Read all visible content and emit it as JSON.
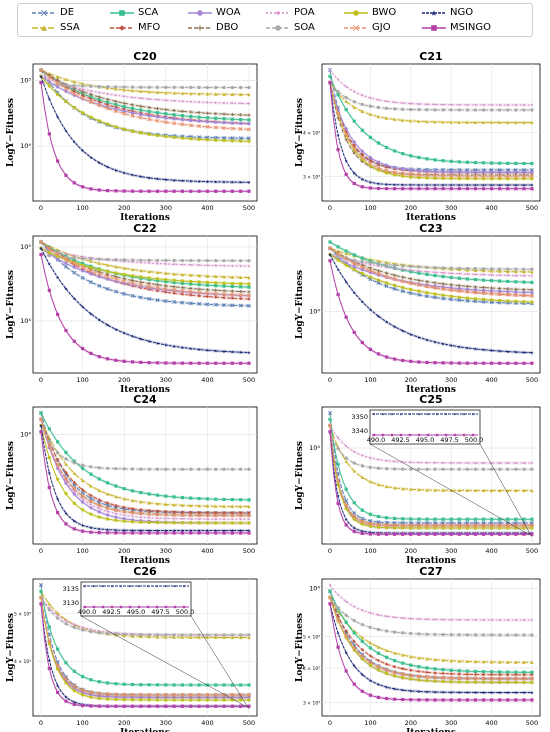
{
  "legend": {
    "items": [
      {
        "name": "DE",
        "color": "#5b7fb5",
        "marker": "x",
        "dash": "4,2"
      },
      {
        "name": "SSA",
        "color": "#c8b42c",
        "marker": "tri",
        "dash": "6,2"
      },
      {
        "name": "SCA",
        "color": "#3bbf8f",
        "marker": "sq",
        "dash": ""
      },
      {
        "name": "MFO",
        "color": "#c0503c",
        "marker": "diamond",
        "dash": "4,2"
      },
      {
        "name": "WOA",
        "color": "#a285d6",
        "marker": "circ",
        "dash": ""
      },
      {
        "name": "DBO",
        "color": "#8b7150",
        "marker": "plus",
        "dash": "4,2"
      },
      {
        "name": "POA",
        "color": "#d48ec8",
        "marker": "dot",
        "dash": "2,2"
      },
      {
        "name": "SOA",
        "color": "#a8a8a8",
        "marker": "circ",
        "dash": "4,2"
      },
      {
        "name": "BWO",
        "color": "#bfbf1e",
        "marker": "circ",
        "dash": ""
      },
      {
        "name": "GJO",
        "color": "#e89470",
        "marker": "x",
        "dash": "4,2"
      },
      {
        "name": "NGO",
        "color": "#1c2a78",
        "marker": "star",
        "dash": "3,1"
      },
      {
        "name": "MSINGO",
        "color": "#b33fa8",
        "marker": "sq",
        "dash": ""
      }
    ]
  },
  "chart_data": [
    {
      "type": "line",
      "title": "C20",
      "xlabel": "Iterations",
      "ylabel": "LogY−Fitness",
      "x_ticks": [
        0,
        100,
        200,
        300,
        400,
        500
      ],
      "y_scale": "log",
      "y_ticks": [
        "10⁵",
        "10⁴"
      ],
      "series": [
        {
          "name": "DE",
          "start": 1.0,
          "end": 0.45,
          "rate": 5
        },
        {
          "name": "SSA",
          "start": 1.0,
          "end": 0.8,
          "rate": 4
        },
        {
          "name": "SCA",
          "start": 1.0,
          "end": 0.58,
          "rate": 3
        },
        {
          "name": "MFO",
          "start": 1.0,
          "end": 0.55,
          "rate": 3
        },
        {
          "name": "WOA",
          "start": 0.95,
          "end": 0.55,
          "rate": 3
        },
        {
          "name": "DBO",
          "start": 1.0,
          "end": 0.62,
          "rate": 3
        },
        {
          "name": "POA",
          "start": 0.95,
          "end": 0.72,
          "rate": 3
        },
        {
          "name": "SOA",
          "start": 0.9,
          "end": 0.86,
          "rate": 6
        },
        {
          "name": "BWO",
          "start": 0.95,
          "end": 0.42,
          "rate": 4
        },
        {
          "name": "GJO",
          "start": 1.0,
          "end": 0.5,
          "rate": 3
        },
        {
          "name": "NGO",
          "start": 0.95,
          "end": 0.1,
          "rate": 6
        },
        {
          "name": "MSINGO",
          "start": 0.9,
          "end": 0.03,
          "rate": 16
        }
      ]
    },
    {
      "type": "line",
      "title": "C21",
      "xlabel": "Iterations",
      "ylabel": "LogY−Fitness",
      "x_ticks": [
        0,
        100,
        200,
        300,
        400,
        500
      ],
      "y_scale": "log",
      "y_ticks": [
        "4 × 10³",
        "3 × 10³"
      ],
      "series": [
        {
          "name": "DE",
          "start": 1.0,
          "end": 0.2,
          "rate": 12
        },
        {
          "name": "SSA",
          "start": 0.9,
          "end": 0.58,
          "rate": 8
        },
        {
          "name": "SCA",
          "start": 0.95,
          "end": 0.25,
          "rate": 6
        },
        {
          "name": "MFO",
          "start": 0.9,
          "end": 0.18,
          "rate": 10
        },
        {
          "name": "WOA",
          "start": 0.9,
          "end": 0.18,
          "rate": 9
        },
        {
          "name": "DBO",
          "start": 0.9,
          "end": 0.16,
          "rate": 12
        },
        {
          "name": "POA",
          "start": 1.0,
          "end": 0.72,
          "rate": 8
        },
        {
          "name": "SOA",
          "start": 0.9,
          "end": 0.68,
          "rate": 10
        },
        {
          "name": "BWO",
          "start": 0.9,
          "end": 0.13,
          "rate": 10
        },
        {
          "name": "GJO",
          "start": 0.9,
          "end": 0.15,
          "rate": 10
        },
        {
          "name": "NGO",
          "start": 0.9,
          "end": 0.08,
          "rate": 18
        },
        {
          "name": "MSINGO",
          "start": 0.9,
          "end": 0.05,
          "rate": 25
        }
      ]
    },
    {
      "type": "line",
      "title": "C22",
      "xlabel": "Iterations",
      "ylabel": "LogY−Fitness",
      "x_ticks": [
        0,
        100,
        200,
        300,
        400,
        500
      ],
      "y_scale": "log",
      "y_ticks": [
        "10⁵",
        "10⁴"
      ],
      "series": [
        {
          "name": "DE",
          "start": 1.0,
          "end": 0.48,
          "rate": 4
        },
        {
          "name": "SSA",
          "start": 1.0,
          "end": 0.7,
          "rate": 3
        },
        {
          "name": "SCA",
          "start": 1.0,
          "end": 0.62,
          "rate": 3
        },
        {
          "name": "MFO",
          "start": 1.0,
          "end": 0.52,
          "rate": 3
        },
        {
          "name": "WOA",
          "start": 0.95,
          "end": 0.55,
          "rate": 3
        },
        {
          "name": "DBO",
          "start": 1.0,
          "end": 0.58,
          "rate": 3
        },
        {
          "name": "POA",
          "start": 0.95,
          "end": 0.8,
          "rate": 3
        },
        {
          "name": "SOA",
          "start": 0.9,
          "end": 0.85,
          "rate": 5
        },
        {
          "name": "BWO",
          "start": 0.95,
          "end": 0.65,
          "rate": 3
        },
        {
          "name": "GJO",
          "start": 1.0,
          "end": 0.55,
          "rate": 3
        },
        {
          "name": "NGO",
          "start": 0.95,
          "end": 0.1,
          "rate": 4
        },
        {
          "name": "MSINGO",
          "start": 0.9,
          "end": 0.03,
          "rate": 10
        }
      ]
    },
    {
      "type": "line",
      "title": "C23",
      "xlabel": "Iterations",
      "ylabel": "LogY−Fitness",
      "x_ticks": [
        0,
        100,
        200,
        300,
        400,
        500
      ],
      "y_scale": "log",
      "y_ticks": [
        "10⁴"
      ],
      "series": [
        {
          "name": "DE",
          "start": 0.95,
          "end": 0.5,
          "rate": 4
        },
        {
          "name": "SSA",
          "start": 0.95,
          "end": 0.75,
          "rate": 3
        },
        {
          "name": "SCA",
          "start": 1.0,
          "end": 0.66,
          "rate": 3
        },
        {
          "name": "MFO",
          "start": 0.95,
          "end": 0.55,
          "rate": 3
        },
        {
          "name": "WOA",
          "start": 0.9,
          "end": 0.58,
          "rate": 3
        },
        {
          "name": "DBO",
          "start": 0.95,
          "end": 0.6,
          "rate": 3
        },
        {
          "name": "POA",
          "start": 0.9,
          "end": 0.72,
          "rate": 3
        },
        {
          "name": "SOA",
          "start": 0.9,
          "end": 0.78,
          "rate": 4
        },
        {
          "name": "BWO",
          "start": 0.9,
          "end": 0.5,
          "rate": 3
        },
        {
          "name": "GJO",
          "start": 0.95,
          "end": 0.55,
          "rate": 3
        },
        {
          "name": "NGO",
          "start": 0.9,
          "end": 0.1,
          "rate": 4
        },
        {
          "name": "MSINGO",
          "start": 0.85,
          "end": 0.03,
          "rate": 10
        }
      ]
    },
    {
      "type": "line",
      "title": "C24",
      "xlabel": "Iterations",
      "ylabel": "LogY−Fitness",
      "x_ticks": [
        0,
        100,
        200,
        300,
        400,
        500
      ],
      "y_scale": "log",
      "y_ticks": [
        "10⁴"
      ],
      "series": [
        {
          "name": "DE",
          "start": 1.0,
          "end": 0.2,
          "rate": 8
        },
        {
          "name": "SSA",
          "start": 0.95,
          "end": 0.25,
          "rate": 6
        },
        {
          "name": "SCA",
          "start": 1.0,
          "end": 0.3,
          "rate": 5
        },
        {
          "name": "MFO",
          "start": 0.95,
          "end": 0.2,
          "rate": 7
        },
        {
          "name": "WOA",
          "start": 0.95,
          "end": 0.12,
          "rate": 8
        },
        {
          "name": "DBO",
          "start": 0.95,
          "end": 0.18,
          "rate": 8
        },
        {
          "name": "POA",
          "start": 0.95,
          "end": 0.15,
          "rate": 8
        },
        {
          "name": "SOA",
          "start": 0.9,
          "end": 0.55,
          "rate": 12
        },
        {
          "name": "BWO",
          "start": 0.9,
          "end": 0.12,
          "rate": 10
        },
        {
          "name": "GJO",
          "start": 0.95,
          "end": 0.18,
          "rate": 8
        },
        {
          "name": "NGO",
          "start": 0.9,
          "end": 0.06,
          "rate": 15
        },
        {
          "name": "MSINGO",
          "start": 0.85,
          "end": 0.04,
          "rate": 20
        }
      ]
    },
    {
      "type": "line",
      "title": "C25",
      "xlabel": "Iterations",
      "ylabel": "LogY−Fitness",
      "x_ticks": [
        0,
        100,
        200,
        300,
        400,
        500
      ],
      "y_scale": "log",
      "y_ticks": [
        "10⁴"
      ],
      "inset": {
        "x_ticks": [
          "490.0",
          "492.5",
          "495.0",
          "497.5",
          "500.0"
        ],
        "y_ticks": [
          "3350",
          "3340"
        ]
      },
      "series": [
        {
          "name": "DE",
          "start": 1.0,
          "end": 0.12,
          "rate": 20
        },
        {
          "name": "SSA",
          "start": 0.9,
          "end": 0.38,
          "rate": 10
        },
        {
          "name": "SCA",
          "start": 0.95,
          "end": 0.15,
          "rate": 15
        },
        {
          "name": "MFO",
          "start": 0.9,
          "end": 0.1,
          "rate": 20
        },
        {
          "name": "WOA",
          "start": 0.9,
          "end": 0.08,
          "rate": 20
        },
        {
          "name": "DBO",
          "start": 0.9,
          "end": 0.1,
          "rate": 20
        },
        {
          "name": "POA",
          "start": 0.9,
          "end": 0.6,
          "rate": 10
        },
        {
          "name": "SOA",
          "start": 0.85,
          "end": 0.55,
          "rate": 15
        },
        {
          "name": "BWO",
          "start": 0.85,
          "end": 0.08,
          "rate": 20
        },
        {
          "name": "GJO",
          "start": 0.9,
          "end": 0.1,
          "rate": 20
        },
        {
          "name": "NGO",
          "start": 0.85,
          "end": 0.04,
          "rate": 25
        },
        {
          "name": "MSINGO",
          "start": 0.85,
          "end": 0.03,
          "rate": 30
        }
      ]
    },
    {
      "type": "line",
      "title": "C26",
      "xlabel": "Iterations",
      "ylabel": "LogY−Fitness",
      "x_ticks": [
        0,
        100,
        200,
        300,
        400,
        500
      ],
      "y_scale": "log",
      "y_ticks": [
        "5 × 10³",
        "4 × 10³"
      ],
      "inset": {
        "x_ticks": [
          "490.0",
          "492.5",
          "495.0",
          "497.5",
          "500.0"
        ],
        "y_ticks": [
          "3135",
          "3130"
        ]
      },
      "series": [
        {
          "name": "DE",
          "start": 1.0,
          "end": 0.12,
          "rate": 15
        },
        {
          "name": "SSA",
          "start": 0.95,
          "end": 0.58,
          "rate": 8
        },
        {
          "name": "SCA",
          "start": 0.95,
          "end": 0.2,
          "rate": 12
        },
        {
          "name": "MFO",
          "start": 0.9,
          "end": 0.1,
          "rate": 15
        },
        {
          "name": "WOA",
          "start": 0.9,
          "end": 0.1,
          "rate": 15
        },
        {
          "name": "DBO",
          "start": 0.9,
          "end": 0.12,
          "rate": 15
        },
        {
          "name": "POA",
          "start": 0.9,
          "end": 0.6,
          "rate": 8
        },
        {
          "name": "SOA",
          "start": 0.9,
          "end": 0.6,
          "rate": 10
        },
        {
          "name": "BWO",
          "start": 0.9,
          "end": 0.08,
          "rate": 15
        },
        {
          "name": "GJO",
          "start": 0.9,
          "end": 0.12,
          "rate": 15
        },
        {
          "name": "NGO",
          "start": 0.85,
          "end": 0.03,
          "rate": 20
        },
        {
          "name": "MSINGO",
          "start": 0.85,
          "end": 0.03,
          "rate": 25
        }
      ]
    },
    {
      "type": "line",
      "title": "C27",
      "xlabel": "Iterations",
      "ylabel": "LogY−Fitness",
      "x_ticks": [
        0,
        100,
        200,
        300,
        400,
        500
      ],
      "y_scale": "log",
      "y_ticks": [
        "10⁴",
        "5 × 10³",
        "4 × 10³",
        "3 × 10³"
      ],
      "series": [
        {
          "name": "DE",
          "start": 0.95,
          "end": 0.25,
          "rate": 8
        },
        {
          "name": "SSA",
          "start": 0.9,
          "end": 0.38,
          "rate": 6
        },
        {
          "name": "SCA",
          "start": 0.95,
          "end": 0.3,
          "rate": 6
        },
        {
          "name": "MFO",
          "start": 0.9,
          "end": 0.28,
          "rate": 7
        },
        {
          "name": "WOA",
          "start": 0.9,
          "end": 0.22,
          "rate": 8
        },
        {
          "name": "DBO",
          "start": 0.9,
          "end": 0.25,
          "rate": 8
        },
        {
          "name": "POA",
          "start": 1.0,
          "end": 0.72,
          "rate": 8
        },
        {
          "name": "SOA",
          "start": 0.9,
          "end": 0.6,
          "rate": 8
        },
        {
          "name": "BWO",
          "start": 0.9,
          "end": 0.22,
          "rate": 8
        },
        {
          "name": "GJO",
          "start": 0.9,
          "end": 0.25,
          "rate": 8
        },
        {
          "name": "NGO",
          "start": 0.85,
          "end": 0.14,
          "rate": 10
        },
        {
          "name": "MSINGO",
          "start": 0.85,
          "end": 0.08,
          "rate": 15
        }
      ]
    }
  ]
}
